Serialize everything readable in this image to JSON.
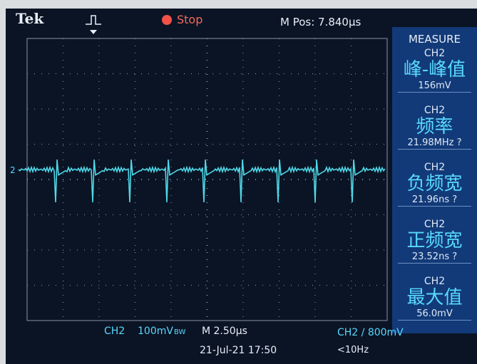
{
  "header": {
    "brand": "Tek",
    "status": "Stop",
    "position": "M Pos: 7.840µs"
  },
  "measure": {
    "title": "MEASURE",
    "items": [
      {
        "channel": "CH2",
        "name": "峰-峰值",
        "value": "156mV"
      },
      {
        "channel": "CH2",
        "name": "频率",
        "value": "21.98MHz ?"
      },
      {
        "channel": "CH2",
        "name": "负频宽",
        "value": "21.96ns ?"
      },
      {
        "channel": "CH2",
        "name": "正频宽",
        "value": "23.52ns ?"
      },
      {
        "channel": "CH2",
        "name": "最大值",
        "value": "56.0mV"
      }
    ]
  },
  "channel_marker": "2",
  "footer": {
    "channel": "CH2",
    "scale": "100mV",
    "bandwidth": "BW",
    "timebase": "M 2.50µs",
    "trigger": "CH2 ∕ 800mV",
    "datetime": "21-Jul-21 17:50",
    "frequency": "<10Hz"
  }
}
